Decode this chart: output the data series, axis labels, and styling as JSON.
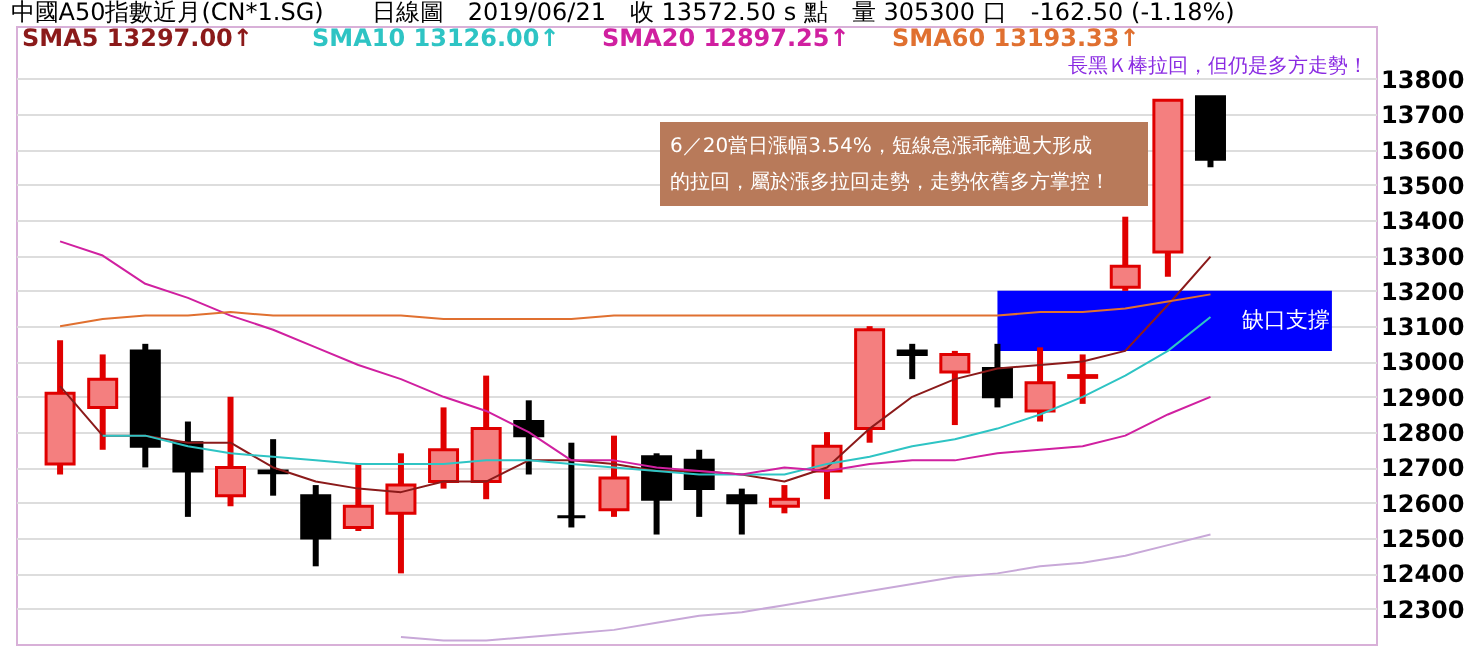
{
  "chart_data": {
    "type": "candlestick",
    "title": "中國A50指數近月(CN*1.SG)　　日線圖　2019/06/21　收 13572.50 s 點　量 305300 口　-162.50 (-1.18%)",
    "categories": [
      null,
      null,
      null,
      null,
      null,
      null,
      null,
      null,
      null,
      null,
      null,
      null,
      null,
      null,
      null,
      null,
      null,
      null,
      null,
      null,
      null,
      null,
      null,
      null,
      null,
      null,
      null,
      null
    ],
    "ohlc": [
      [
        12710,
        13060,
        12680,
        12910
      ],
      [
        12870,
        13020,
        12750,
        12950
      ],
      [
        13030,
        13050,
        12700,
        12760
      ],
      [
        12770,
        12830,
        12560,
        12690
      ],
      [
        12620,
        12900,
        12590,
        12700
      ],
      [
        12690,
        12780,
        12620,
        12685
      ],
      [
        12620,
        12650,
        12420,
        12500
      ],
      [
        12530,
        12710,
        12520,
        12590
      ],
      [
        12570,
        12740,
        12400,
        12650
      ],
      [
        12660,
        12870,
        12640,
        12750
      ],
      [
        12660,
        12960,
        12610,
        12810
      ],
      [
        12830,
        12890,
        12680,
        12790
      ],
      [
        12560,
        12770,
        12530,
        12560
      ],
      [
        12580,
        12790,
        12560,
        12670
      ],
      [
        12730,
        12740,
        12510,
        12610
      ],
      [
        12720,
        12750,
        12560,
        12640
      ],
      [
        12620,
        12640,
        12510,
        12600
      ],
      [
        12590,
        12650,
        12570,
        12610
      ],
      [
        12690,
        12800,
        12610,
        12760
      ],
      [
        12810,
        13100,
        12770,
        13090
      ],
      [
        13030,
        13050,
        12950,
        13020
      ],
      [
        12970,
        13030,
        12820,
        13020
      ],
      [
        12980,
        13050,
        12870,
        12900
      ],
      [
        12860,
        13040,
        12830,
        12940
      ],
      [
        12955,
        13020,
        12880,
        12960
      ],
      [
        13210,
        13410,
        13200,
        13270
      ],
      [
        13310,
        13740,
        13240,
        13740
      ],
      [
        13750,
        13750,
        13550,
        13572.5
      ]
    ],
    "series": [
      {
        "type": "line",
        "name": "SMA5 13297.00↑",
        "color": "#8b1a1a",
        "values": [
          12930,
          12790,
          12790,
          12770,
          12770,
          12700,
          12660,
          12640,
          12630,
          12660,
          12660,
          12720,
          12720,
          12710,
          12690,
          12690,
          12680,
          12660,
          12700,
          12810,
          12900,
          12950,
          12980,
          12990,
          13000,
          13030,
          13160,
          13297
        ]
      },
      {
        "type": "line",
        "name": "SMA10 13126.00↑",
        "color": "#2ec4c4",
        "values": [
          null,
          12790,
          12790,
          12760,
          12740,
          12730,
          12720,
          12710,
          12710,
          12710,
          12720,
          12720,
          12710,
          12700,
          12690,
          12680,
          12680,
          12680,
          12710,
          12730,
          12760,
          12780,
          12810,
          12850,
          12900,
          12960,
          13030,
          13126
        ]
      },
      {
        "type": "line",
        "name": "SMA20 12897.25↑",
        "color": "#d020a0",
        "values": [
          13340,
          13300,
          13220,
          13180,
          13130,
          13090,
          13040,
          12990,
          12950,
          12900,
          12860,
          12800,
          12720,
          12720,
          12700,
          12690,
          12680,
          12700,
          12690,
          12710,
          12720,
          12720,
          12740,
          12750,
          12760,
          12790,
          12850,
          12900
        ]
      },
      {
        "type": "line",
        "name": "SMA60 13193.33↑",
        "color": "#e07030",
        "values": [
          13100,
          13120,
          13130,
          13130,
          13140,
          13130,
          13130,
          13130,
          13130,
          13120,
          13120,
          13120,
          13120,
          13130,
          13130,
          13130,
          13130,
          13130,
          13130,
          13130,
          13130,
          13130,
          13130,
          13140,
          13140,
          13150,
          13170,
          13190
        ]
      },
      {
        "type": "line",
        "color": "#c8a8d8",
        "values": [
          null,
          null,
          null,
          null,
          null,
          null,
          null,
          null,
          12220,
          12210,
          12210,
          12220,
          12230,
          12240,
          12260,
          12280,
          12290,
          12310,
          12330,
          12350,
          12370,
          12390,
          12400,
          12420,
          12430,
          12450,
          12480,
          12510
        ]
      }
    ],
    "bands": [
      {
        "axis": "y",
        "from": 13030,
        "to": 13200,
        "label": "缺口支撐",
        "color": "#0000ff"
      }
    ],
    "annotations": [
      "6／20當日漲幅3.54%，短線急漲乖離過大形成",
      "的拉回，屬於漲多拉回走勢，走勢依舊多方掌控！",
      "長黑Ｋ棒拉回，但仍是多方走勢！"
    ],
    "ylim": [
      12200,
      13950
    ],
    "yticks": [
      12300,
      12400,
      12500,
      12600,
      12700,
      12800,
      12900,
      13000,
      13100,
      13200,
      13300,
      13400,
      13500,
      13600,
      13700,
      13800
    ],
    "grid": "y",
    "legend": "top left",
    "tick_labels": "y"
  }
}
